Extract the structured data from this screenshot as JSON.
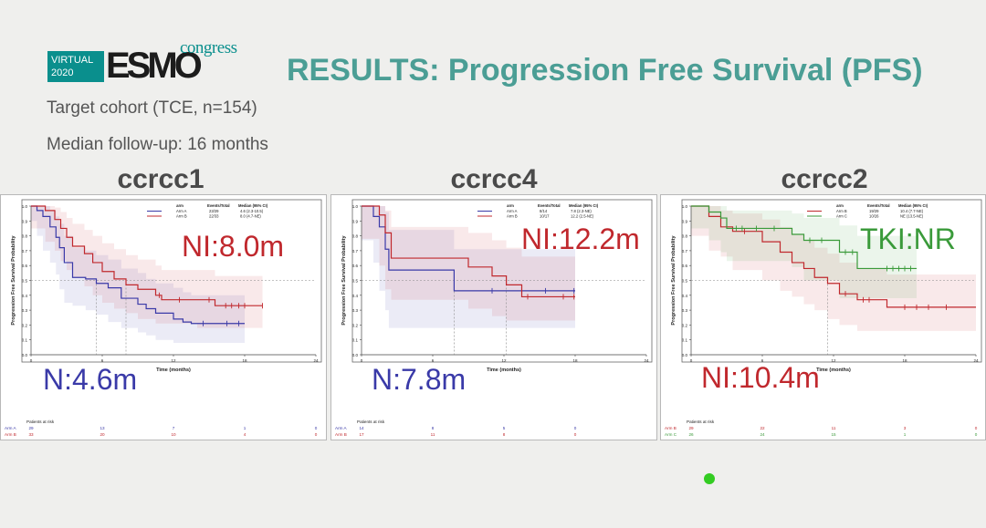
{
  "slide": {
    "logo": {
      "virtual_line1": "VIRTUAL",
      "virtual_line2": "2020",
      "esmo": "ESMO",
      "congress": "congress"
    },
    "title": "RESULTS: Progression Free Survival (PFS)",
    "cohort": "Target cohort (TCE, n=154)",
    "followup": "Median follow-up: 16 months",
    "colors": {
      "teal": "#4b9e95",
      "red": "#c0282d",
      "blue": "#3a3aa8",
      "green": "#3a9a3a"
    }
  },
  "chart_data": [
    {
      "type": "line",
      "title": "ccrcc1",
      "xlabel": "Time (months)",
      "ylabel": "Progression Free Survival Probability",
      "xticks": [
        0,
        6,
        12,
        18,
        24
      ],
      "yticks": [
        0.0,
        0.1,
        0.2,
        0.3,
        0.4,
        0.5,
        0.6,
        0.7,
        0.8,
        0.9,
        1.0
      ],
      "xlim": [
        0,
        24
      ],
      "ylim": [
        0,
        1
      ],
      "legend": {
        "header": [
          "arm",
          "Events/Total",
          "Median (95% CI)"
        ],
        "rows": [
          [
            "Arm A",
            "23/29",
            "4.6 (2.3-10.5)"
          ],
          [
            "Arm B",
            "22/33",
            "8.0 (4.7-NE)"
          ]
        ]
      },
      "annotations": [
        {
          "text": "NI:8.0m",
          "color": "#c0282d"
        },
        {
          "text": "N:4.6m",
          "color": "#3a3aa8"
        }
      ],
      "series": [
        {
          "name": "Arm A",
          "color": "#3a3aa8",
          "x": [
            0,
            0.5,
            1.0,
            1.6,
            2.1,
            2.4,
            2.8,
            3.5,
            4.6,
            5.5,
            6.5,
            7.6,
            9.0,
            9.7,
            10.5,
            12.0,
            12.8,
            13.5,
            18.0
          ],
          "y": [
            1.0,
            0.97,
            0.93,
            0.86,
            0.79,
            0.72,
            0.62,
            0.52,
            0.51,
            0.48,
            0.45,
            0.38,
            0.34,
            0.31,
            0.28,
            0.24,
            0.22,
            0.21,
            0.21
          ],
          "censor": [
            14.5,
            16.5,
            17.5
          ],
          "ci_upper": [
            1.0,
            1.0,
            1.0,
            0.97,
            0.93,
            0.88,
            0.8,
            0.72,
            0.7,
            0.67,
            0.64,
            0.58,
            0.55,
            0.51,
            0.48,
            0.45,
            0.42,
            0.4,
            0.4
          ],
          "ci_lower": [
            1.0,
            0.9,
            0.8,
            0.7,
            0.62,
            0.54,
            0.44,
            0.35,
            0.33,
            0.3,
            0.27,
            0.22,
            0.18,
            0.15,
            0.13,
            0.1,
            0.08,
            0.08,
            0.08
          ]
        },
        {
          "name": "Arm B",
          "color": "#c0282d",
          "x": [
            0,
            1.2,
            2.0,
            2.5,
            3.0,
            3.5,
            4.5,
            5.2,
            6.0,
            7.0,
            8.0,
            9.0,
            10.5,
            11.0,
            14.0,
            15.5,
            19.5
          ],
          "y": [
            1.0,
            0.97,
            0.91,
            0.85,
            0.79,
            0.73,
            0.68,
            0.62,
            0.56,
            0.51,
            0.47,
            0.44,
            0.4,
            0.37,
            0.37,
            0.33,
            0.33
          ],
          "censor": [
            10.8,
            12.5,
            15.0,
            16.4,
            16.9,
            17.5,
            18.0,
            19.5
          ],
          "ci_upper": [
            1.0,
            1.0,
            0.99,
            0.96,
            0.92,
            0.88,
            0.84,
            0.8,
            0.75,
            0.71,
            0.67,
            0.64,
            0.6,
            0.57,
            0.57,
            0.53,
            0.53
          ],
          "ci_lower": [
            1.0,
            0.85,
            0.76,
            0.7,
            0.63,
            0.57,
            0.52,
            0.46,
            0.4,
            0.35,
            0.31,
            0.28,
            0.24,
            0.21,
            0.21,
            0.18,
            0.18
          ]
        }
      ],
      "at_risk": {
        "label": "Patients at risk",
        "rows": [
          {
            "arm": "Arm A",
            "values": [
              "29",
              "13",
              "7",
              "1",
              "0"
            ]
          },
          {
            "arm": "Arm B",
            "values": [
              "33",
              "20",
              "10",
              "4",
              "0"
            ]
          }
        ]
      }
    },
    {
      "type": "line",
      "title": "ccrcc4",
      "xlabel": "Time (months)",
      "ylabel": "Progression Free Survival Probability",
      "xticks": [
        0,
        6,
        12,
        18,
        24
      ],
      "yticks": [
        0.0,
        0.1,
        0.2,
        0.3,
        0.4,
        0.5,
        0.6,
        0.7,
        0.8,
        0.9,
        1.0
      ],
      "xlim": [
        0,
        24
      ],
      "ylim": [
        0,
        1
      ],
      "legend": {
        "header": [
          "arm",
          "Events/Total",
          "Median (95% CI)"
        ],
        "rows": [
          [
            "Arm A",
            "8/14",
            "7.8 (2.3-NE)"
          ],
          [
            "Arm B",
            "10/17",
            "12.2 (2.5-NE)"
          ]
        ]
      },
      "annotations": [
        {
          "text": "NI:12.2m",
          "color": "#c0282d"
        },
        {
          "text": "N:7.8m",
          "color": "#3a3aa8"
        }
      ],
      "series": [
        {
          "name": "Arm A",
          "color": "#3a3aa8",
          "x": [
            0,
            1.0,
            1.5,
            2.0,
            2.3,
            7.8,
            18.0
          ],
          "y": [
            1.0,
            0.93,
            0.86,
            0.71,
            0.57,
            0.43,
            0.43
          ],
          "censor": [
            11.0,
            13.5,
            15.5,
            17.9
          ],
          "ci_upper": [
            1.0,
            1.0,
            1.0,
            0.96,
            0.84,
            0.71,
            0.71
          ],
          "ci_lower": [
            1.0,
            0.77,
            0.62,
            0.43,
            0.3,
            0.18,
            0.18
          ]
        },
        {
          "name": "Arm B",
          "color": "#c0282d",
          "x": [
            0,
            1.5,
            2.0,
            2.5,
            9.0,
            11.0,
            12.2,
            13.5,
            18.0
          ],
          "y": [
            1.0,
            0.94,
            0.82,
            0.65,
            0.59,
            0.53,
            0.47,
            0.39,
            0.39
          ],
          "censor": [
            14.0,
            17.0,
            17.9
          ],
          "ci_upper": [
            1.0,
            1.0,
            0.97,
            0.86,
            0.82,
            0.77,
            0.72,
            0.66,
            0.66
          ],
          "ci_lower": [
            1.0,
            0.78,
            0.6,
            0.44,
            0.37,
            0.31,
            0.26,
            0.23,
            0.23
          ]
        }
      ],
      "at_risk": {
        "label": "Patients at risk",
        "rows": [
          {
            "arm": "Arm A",
            "values": [
              "14",
              "8",
              "5",
              "0",
              ""
            ]
          },
          {
            "arm": "Arm B",
            "values": [
              "17",
              "11",
              "8",
              "0",
              ""
            ]
          }
        ]
      }
    },
    {
      "type": "line",
      "title": "ccrcc2",
      "xlabel": "Time (months)",
      "ylabel": "Progression Free Survival Probability",
      "xticks": [
        0,
        6,
        12,
        18,
        24
      ],
      "yticks": [
        0.0,
        0.1,
        0.2,
        0.3,
        0.4,
        0.5,
        0.6,
        0.7,
        0.8,
        0.9,
        1.0
      ],
      "xlim": [
        0,
        24
      ],
      "ylim": [
        0,
        1
      ],
      "legend": {
        "header": [
          "arm",
          "Events/Total",
          "Median (95% CI)"
        ],
        "rows": [
          [
            "Arm B",
            "19/29",
            "10.4 (7.7-NE)"
          ],
          [
            "Arm C",
            "10/26",
            "NE (13.5-NE)"
          ]
        ]
      },
      "annotations": [
        {
          "text": "TKI:NR",
          "color": "#3a9a3a"
        },
        {
          "text": "NI:10.4m",
          "color": "#c0282d"
        }
      ],
      "series": [
        {
          "name": "Arm B",
          "color": "#c0282d",
          "x": [
            0,
            1.5,
            2.5,
            3.5,
            6.0,
            7.5,
            8.5,
            9.5,
            10.4,
            11.5,
            12.5,
            14.0,
            16.5,
            24.0
          ],
          "y": [
            1.0,
            0.93,
            0.86,
            0.83,
            0.76,
            0.69,
            0.62,
            0.58,
            0.52,
            0.48,
            0.41,
            0.37,
            0.32,
            0.32
          ],
          "censor": [
            4.5,
            13.0,
            14.5,
            15.0,
            18.0,
            19.0,
            20.0,
            21.5
          ],
          "ci_upper": [
            1.0,
            1.0,
            0.97,
            0.95,
            0.91,
            0.86,
            0.81,
            0.77,
            0.72,
            0.68,
            0.62,
            0.58,
            0.54,
            0.54
          ],
          "ci_lower": [
            1.0,
            0.8,
            0.7,
            0.66,
            0.57,
            0.5,
            0.43,
            0.39,
            0.34,
            0.3,
            0.24,
            0.2,
            0.16,
            0.16
          ]
        },
        {
          "name": "Arm C",
          "color": "#3a9a3a",
          "x": [
            0,
            1.5,
            2.5,
            3.0,
            8.5,
            9.5,
            12.5,
            14.0,
            19.0
          ],
          "y": [
            1.0,
            0.96,
            0.92,
            0.85,
            0.81,
            0.77,
            0.69,
            0.58,
            0.58
          ],
          "censor": [
            3.8,
            4.3,
            5.5,
            7.0,
            10.0,
            11.0,
            13.0,
            13.6,
            16.5,
            17.0,
            17.5,
            18.0,
            18.5
          ],
          "ci_upper": [
            1.0,
            1.0,
            1.0,
            0.97,
            0.95,
            0.92,
            0.87,
            0.8,
            0.8
          ],
          "ci_lower": [
            1.0,
            0.85,
            0.77,
            0.69,
            0.63,
            0.59,
            0.5,
            0.38,
            0.38
          ]
        }
      ],
      "at_risk": {
        "label": "Patients at risk",
        "rows": [
          {
            "arm": "Arm B",
            "values": [
              "29",
              "22",
              "11",
              "3",
              "0"
            ]
          },
          {
            "arm": "Arm C",
            "values": [
              "26",
              "24",
              "15",
              "1",
              "0"
            ]
          }
        ]
      }
    }
  ]
}
